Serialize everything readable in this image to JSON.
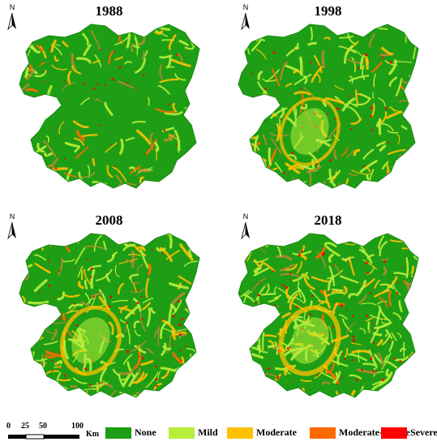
{
  "panels": [
    {
      "year": "1988"
    },
    {
      "year": "1998"
    },
    {
      "year": "2008"
    },
    {
      "year": "2018"
    }
  ],
  "north_label": "N",
  "scale": {
    "ticks": [
      "0",
      "25",
      "50",
      "100"
    ],
    "unit": "Km"
  },
  "legend": [
    {
      "label": "None",
      "color": "#1e9e14"
    },
    {
      "label": "Mild",
      "color": "#b8ee3a"
    },
    {
      "label": "Moderate",
      "color": "#ffc000"
    },
    {
      "label": "Moderate-Severe",
      "color": "#ff6a00"
    },
    {
      "label": "Severe",
      "color": "#ff0000"
    }
  ]
}
